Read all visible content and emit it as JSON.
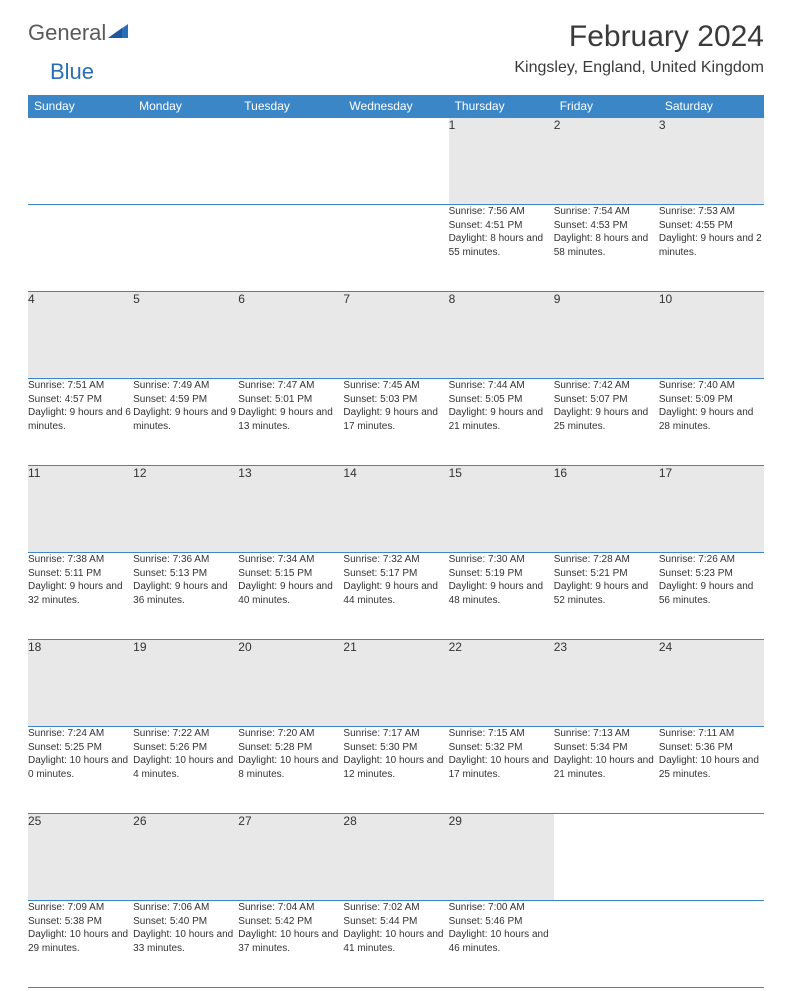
{
  "logo": {
    "text1": "General",
    "text2": "Blue"
  },
  "title": "February 2024",
  "location": "Kingsley, England, United Kingdom",
  "colors": {
    "header_bg": "#3b86c7",
    "header_text": "#ffffff",
    "daynum_bg": "#e8e8e8",
    "border": "#3b86c7",
    "text": "#333333",
    "logo_gray": "#5a5a5a",
    "logo_blue": "#2a6fb5"
  },
  "weekdays": [
    "Sunday",
    "Monday",
    "Tuesday",
    "Wednesday",
    "Thursday",
    "Friday",
    "Saturday"
  ],
  "weeks": [
    [
      null,
      null,
      null,
      null,
      {
        "n": "1",
        "sr": "7:56 AM",
        "ss": "4:51 PM",
        "dl": "8 hours and 55 minutes."
      },
      {
        "n": "2",
        "sr": "7:54 AM",
        "ss": "4:53 PM",
        "dl": "8 hours and 58 minutes."
      },
      {
        "n": "3",
        "sr": "7:53 AM",
        "ss": "4:55 PM",
        "dl": "9 hours and 2 minutes."
      }
    ],
    [
      {
        "n": "4",
        "sr": "7:51 AM",
        "ss": "4:57 PM",
        "dl": "9 hours and 6 minutes."
      },
      {
        "n": "5",
        "sr": "7:49 AM",
        "ss": "4:59 PM",
        "dl": "9 hours and 9 minutes."
      },
      {
        "n": "6",
        "sr": "7:47 AM",
        "ss": "5:01 PM",
        "dl": "9 hours and 13 minutes."
      },
      {
        "n": "7",
        "sr": "7:45 AM",
        "ss": "5:03 PM",
        "dl": "9 hours and 17 minutes."
      },
      {
        "n": "8",
        "sr": "7:44 AM",
        "ss": "5:05 PM",
        "dl": "9 hours and 21 minutes."
      },
      {
        "n": "9",
        "sr": "7:42 AM",
        "ss": "5:07 PM",
        "dl": "9 hours and 25 minutes."
      },
      {
        "n": "10",
        "sr": "7:40 AM",
        "ss": "5:09 PM",
        "dl": "9 hours and 28 minutes."
      }
    ],
    [
      {
        "n": "11",
        "sr": "7:38 AM",
        "ss": "5:11 PM",
        "dl": "9 hours and 32 minutes."
      },
      {
        "n": "12",
        "sr": "7:36 AM",
        "ss": "5:13 PM",
        "dl": "9 hours and 36 minutes."
      },
      {
        "n": "13",
        "sr": "7:34 AM",
        "ss": "5:15 PM",
        "dl": "9 hours and 40 minutes."
      },
      {
        "n": "14",
        "sr": "7:32 AM",
        "ss": "5:17 PM",
        "dl": "9 hours and 44 minutes."
      },
      {
        "n": "15",
        "sr": "7:30 AM",
        "ss": "5:19 PM",
        "dl": "9 hours and 48 minutes."
      },
      {
        "n": "16",
        "sr": "7:28 AM",
        "ss": "5:21 PM",
        "dl": "9 hours and 52 minutes."
      },
      {
        "n": "17",
        "sr": "7:26 AM",
        "ss": "5:23 PM",
        "dl": "9 hours and 56 minutes."
      }
    ],
    [
      {
        "n": "18",
        "sr": "7:24 AM",
        "ss": "5:25 PM",
        "dl": "10 hours and 0 minutes."
      },
      {
        "n": "19",
        "sr": "7:22 AM",
        "ss": "5:26 PM",
        "dl": "10 hours and 4 minutes."
      },
      {
        "n": "20",
        "sr": "7:20 AM",
        "ss": "5:28 PM",
        "dl": "10 hours and 8 minutes."
      },
      {
        "n": "21",
        "sr": "7:17 AM",
        "ss": "5:30 PM",
        "dl": "10 hours and 12 minutes."
      },
      {
        "n": "22",
        "sr": "7:15 AM",
        "ss": "5:32 PM",
        "dl": "10 hours and 17 minutes."
      },
      {
        "n": "23",
        "sr": "7:13 AM",
        "ss": "5:34 PM",
        "dl": "10 hours and 21 minutes."
      },
      {
        "n": "24",
        "sr": "7:11 AM",
        "ss": "5:36 PM",
        "dl": "10 hours and 25 minutes."
      }
    ],
    [
      {
        "n": "25",
        "sr": "7:09 AM",
        "ss": "5:38 PM",
        "dl": "10 hours and 29 minutes."
      },
      {
        "n": "26",
        "sr": "7:06 AM",
        "ss": "5:40 PM",
        "dl": "10 hours and 33 minutes."
      },
      {
        "n": "27",
        "sr": "7:04 AM",
        "ss": "5:42 PM",
        "dl": "10 hours and 37 minutes."
      },
      {
        "n": "28",
        "sr": "7:02 AM",
        "ss": "5:44 PM",
        "dl": "10 hours and 41 minutes."
      },
      {
        "n": "29",
        "sr": "7:00 AM",
        "ss": "5:46 PM",
        "dl": "10 hours and 46 minutes."
      },
      null,
      null
    ]
  ],
  "labels": {
    "sunrise": "Sunrise:",
    "sunset": "Sunset:",
    "daylight": "Daylight:"
  }
}
